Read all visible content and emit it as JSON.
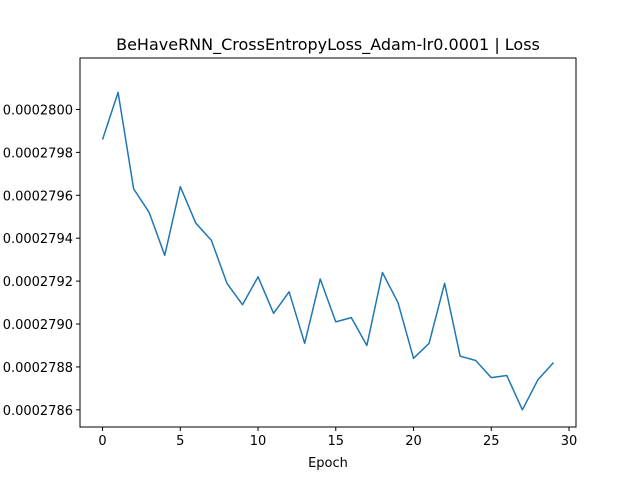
{
  "chart_data": {
    "type": "line",
    "title": "BeHaveRNN_CrossEntropyLoss_Adam-lr0.0001 | Loss",
    "xlabel": "Epoch",
    "ylabel": "",
    "xlim": [
      -1.45,
      30.45
    ],
    "ylim": [
      0.00027852,
      0.00028024
    ],
    "grid": false,
    "x_ticks": [
      0,
      5,
      10,
      15,
      20,
      25,
      30
    ],
    "x_tick_labels": [
      "0",
      "5",
      "10",
      "15",
      "20",
      "25",
      "30"
    ],
    "y_ticks": [
      0.0002786,
      0.0002788,
      0.000279,
      0.0002792,
      0.0002794,
      0.0002796,
      0.0002798,
      0.00028
    ],
    "y_tick_labels": [
      "0.0002786",
      "0.0002788",
      "0.0002790",
      "0.0002792",
      "0.0002794",
      "0.0002796",
      "0.0002798",
      "0.0002800"
    ],
    "series": [
      {
        "name": "Loss",
        "color": "#1f77b4",
        "x": [
          0,
          1,
          2,
          3,
          4,
          5,
          6,
          7,
          8,
          9,
          10,
          11,
          12,
          13,
          14,
          15,
          16,
          17,
          18,
          19,
          20,
          21,
          22,
          23,
          24,
          25,
          26,
          27,
          28,
          29
        ],
        "values": [
          0.00027986,
          0.00028008,
          0.00027963,
          0.00027952,
          0.00027932,
          0.00027964,
          0.00027947,
          0.00027939,
          0.00027919,
          0.00027909,
          0.00027922,
          0.00027905,
          0.00027915,
          0.00027891,
          0.00027921,
          0.00027901,
          0.00027903,
          0.0002789,
          0.00027924,
          0.0002791,
          0.00027884,
          0.00027891,
          0.00027919,
          0.00027885,
          0.00027883,
          0.00027875,
          0.00027876,
          0.0002786,
          0.00027874,
          0.00027882
        ]
      }
    ]
  }
}
